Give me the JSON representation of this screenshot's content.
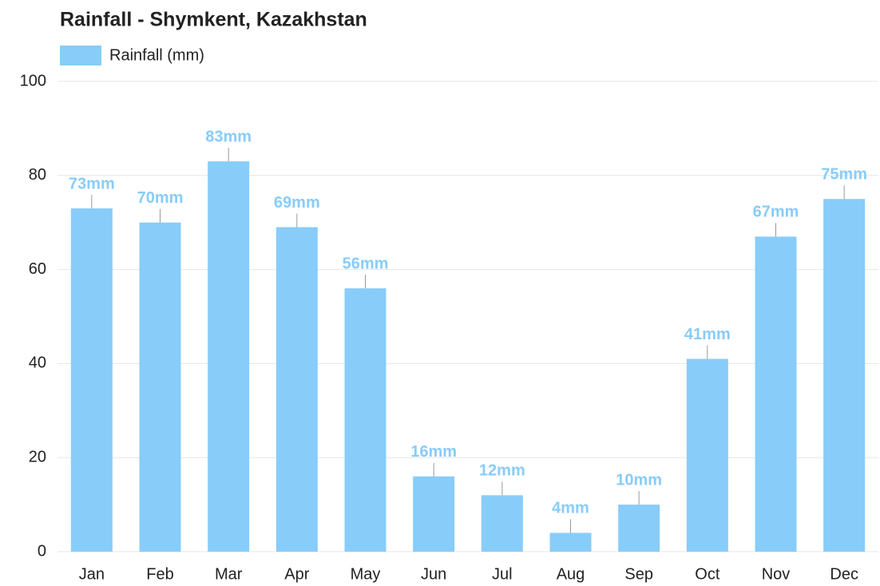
{
  "chart_data": {
    "type": "bar",
    "title": "Rainfall - Shymkent, Kazakhstan",
    "legend": "Rainfall (mm)",
    "categories": [
      "Jan",
      "Feb",
      "Mar",
      "Apr",
      "May",
      "Jun",
      "Jul",
      "Aug",
      "Sep",
      "Oct",
      "Nov",
      "Dec"
    ],
    "values": [
      73,
      70,
      83,
      69,
      56,
      16,
      12,
      4,
      10,
      41,
      67,
      75
    ],
    "value_labels": [
      "73mm",
      "70mm",
      "83mm",
      "69mm",
      "56mm",
      "16mm",
      "12mm",
      "4mm",
      "10mm",
      "41mm",
      "67mm",
      "75mm"
    ],
    "color": "#88ccf9",
    "ylim": [
      0,
      100
    ],
    "yticks": [
      0,
      20,
      40,
      60,
      80,
      100
    ],
    "grid": true
  }
}
